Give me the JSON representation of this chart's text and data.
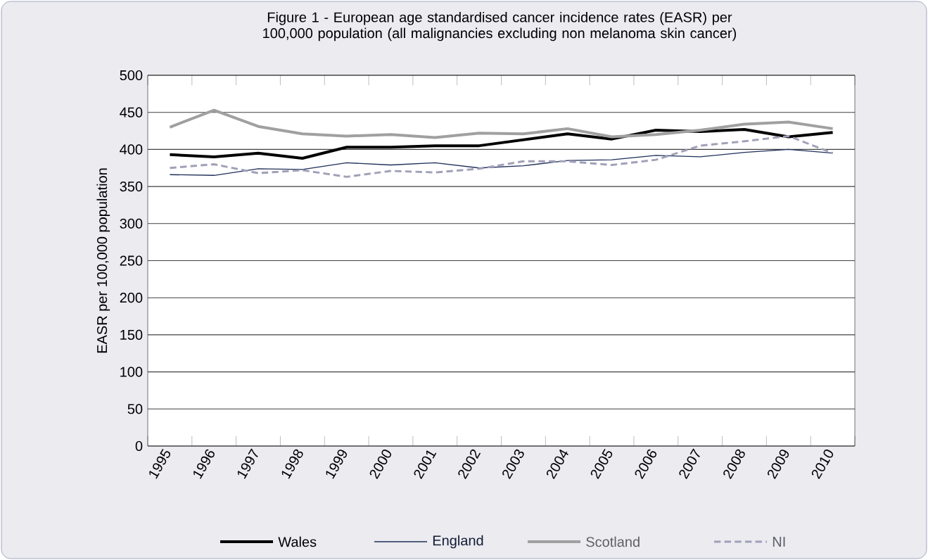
{
  "chart_data": {
    "type": "line",
    "title": "Figure 1 - European age standardised cancer incidence rates (EASR) per 100,000 population (all malignancies excluding non melanoma skin cancer)",
    "ylabel": "EASR per 100,000 population",
    "categories": [
      "1995",
      "1996",
      "1997",
      "1998",
      "1999",
      "2000",
      "2001",
      "2002",
      "2003",
      "2004",
      "2005",
      "2006",
      "2007",
      "2008",
      "2009",
      "2010"
    ],
    "ylim": [
      0,
      500
    ],
    "yticks": [
      0,
      50,
      100,
      150,
      200,
      250,
      300,
      350,
      400,
      450,
      500
    ],
    "grid": "y",
    "legend": "bottom",
    "marker": "none",
    "series": [
      {
        "name": "Wales",
        "color": "#000000",
        "line_style": "solid",
        "values": [
          393,
          390,
          395,
          388,
          403,
          403,
          405,
          405,
          413,
          421,
          414,
          426,
          424,
          427,
          417,
          423
        ]
      },
      {
        "name": "England",
        "color": "#1f2f5a",
        "line_style": "solid",
        "values": [
          366,
          365,
          374,
          373,
          382,
          379,
          382,
          375,
          378,
          385,
          386,
          392,
          390,
          396,
          400,
          395
        ]
      },
      {
        "name": "Scotland",
        "color": "#a0a0a0",
        "line_style": "solid",
        "values": [
          430,
          453,
          431,
          421,
          418,
          420,
          416,
          422,
          421,
          428,
          417,
          420,
          426,
          434,
          437,
          428
        ]
      },
      {
        "name": "NI",
        "color": "#a0a0b8",
        "line_style": "dashed",
        "values": [
          375,
          380,
          368,
          372,
          363,
          371,
          369,
          374,
          384,
          384,
          379,
          386,
          405,
          411,
          418,
          395
        ]
      }
    ]
  }
}
